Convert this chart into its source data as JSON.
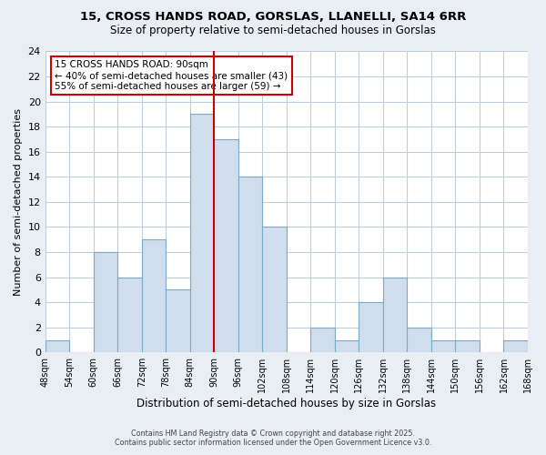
{
  "title": "15, CROSS HANDS ROAD, GORSLAS, LLANELLI, SA14 6RR",
  "subtitle": "Size of property relative to semi-detached houses in Gorslas",
  "xlabel": "Distribution of semi-detached houses by size in Gorslas",
  "ylabel": "Number of semi-detached properties",
  "bin_edges": [
    48,
    54,
    60,
    66,
    72,
    78,
    84,
    90,
    96,
    102,
    108,
    114,
    120,
    126,
    132,
    138,
    144,
    150,
    156,
    162,
    168
  ],
  "counts": [
    1,
    0,
    8,
    6,
    9,
    5,
    19,
    17,
    14,
    10,
    0,
    2,
    1,
    4,
    6,
    2,
    1,
    1,
    0,
    1
  ],
  "bar_color": "#cfdded",
  "bar_edge_color": "#7aaac8",
  "vline_x": 90,
  "vline_color": "#cc0000",
  "ylim": [
    0,
    24
  ],
  "yticks": [
    0,
    2,
    4,
    6,
    8,
    10,
    12,
    14,
    16,
    18,
    20,
    22,
    24
  ],
  "annotation_title": "15 CROSS HANDS ROAD: 90sqm",
  "annotation_line1": "← 40% of semi-detached houses are smaller (43)",
  "annotation_line2": "55% of semi-detached houses are larger (59) →",
  "annotation_box_facecolor": "#ffffff",
  "annotation_box_edgecolor": "#cc0000",
  "figure_background": "#e8eef4",
  "axes_background": "#ffffff",
  "grid_color": "#c0ccd8",
  "grid_linewidth": 0.8,
  "footer_line1": "Contains HM Land Registry data © Crown copyright and database right 2025.",
  "footer_line2": "Contains public sector information licensed under the Open Government Licence v3.0.",
  "title_fontsize": 9.5,
  "subtitle_fontsize": 8.5,
  "xlabel_fontsize": 8.5,
  "ylabel_fontsize": 8,
  "xtick_fontsize": 7,
  "ytick_fontsize": 8,
  "annotation_fontsize": 7.5,
  "footer_fontsize": 5.8
}
